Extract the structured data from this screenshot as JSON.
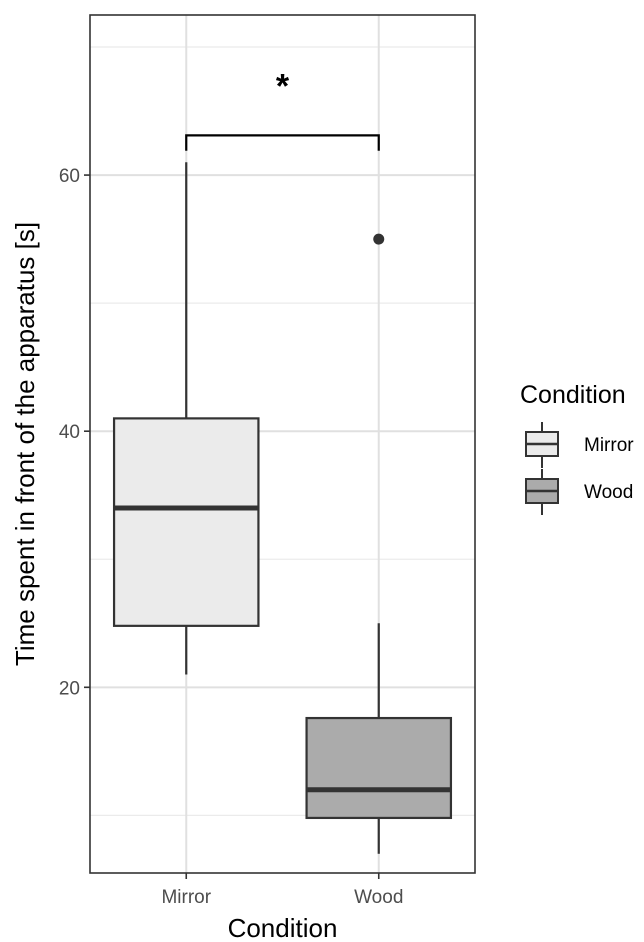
{
  "chart_data": {
    "type": "box",
    "xlabel": "Condition",
    "ylabel": "Time spent in front of the apparatus [s]",
    "ylim": [
      5.5,
      72.5
    ],
    "yticks": [
      20,
      40,
      60
    ],
    "yminor": [
      10,
      30,
      50,
      70
    ],
    "grid": true,
    "categories": [
      "Mirror",
      "Wood"
    ],
    "boxes": [
      {
        "name": "Mirror",
        "whisker_low": 21,
        "q1": 24.8,
        "median": 34,
        "q3": 41,
        "whisker_high": 61,
        "outliers": [],
        "fill": "#ebebeb"
      },
      {
        "name": "Wood",
        "whisker_low": 7,
        "q1": 9.8,
        "median": 12,
        "q3": 17.6,
        "whisker_high": 25,
        "outliers": [
          55
        ],
        "fill": "#ababab"
      }
    ],
    "significance": {
      "label": "*",
      "between": [
        "Mirror",
        "Wood"
      ],
      "bracket_y": 63.1,
      "bracket_drop": 1.2
    },
    "legend": {
      "title": "Condition",
      "position": "right",
      "entries": [
        "Mirror",
        "Wood"
      ]
    }
  }
}
